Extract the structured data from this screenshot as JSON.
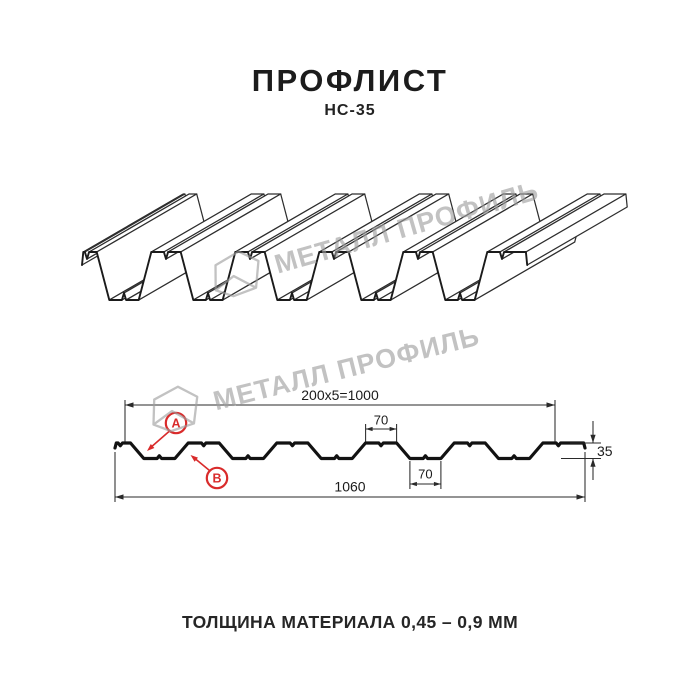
{
  "header": {
    "title": "ПРОФЛИСТ",
    "subtitle": "НС-35"
  },
  "watermark": {
    "text": "МЕТАЛЛ ПРОФИЛЬ",
    "color": "#9e9e9e"
  },
  "section_drawing": {
    "dim_top": "200x5=1000",
    "dim_rib_top": "70",
    "dim_rib_bottom": "70",
    "dim_total_width": "1060",
    "dim_height": "35",
    "label_a": "A",
    "label_b": "B",
    "accent_red": "#d92b2b",
    "line_color": "#1b1b1b"
  },
  "footer": {
    "thickness_note": "ТОЛЩИНА МАТЕРИАЛА 0,45 – 0,9 ММ"
  }
}
